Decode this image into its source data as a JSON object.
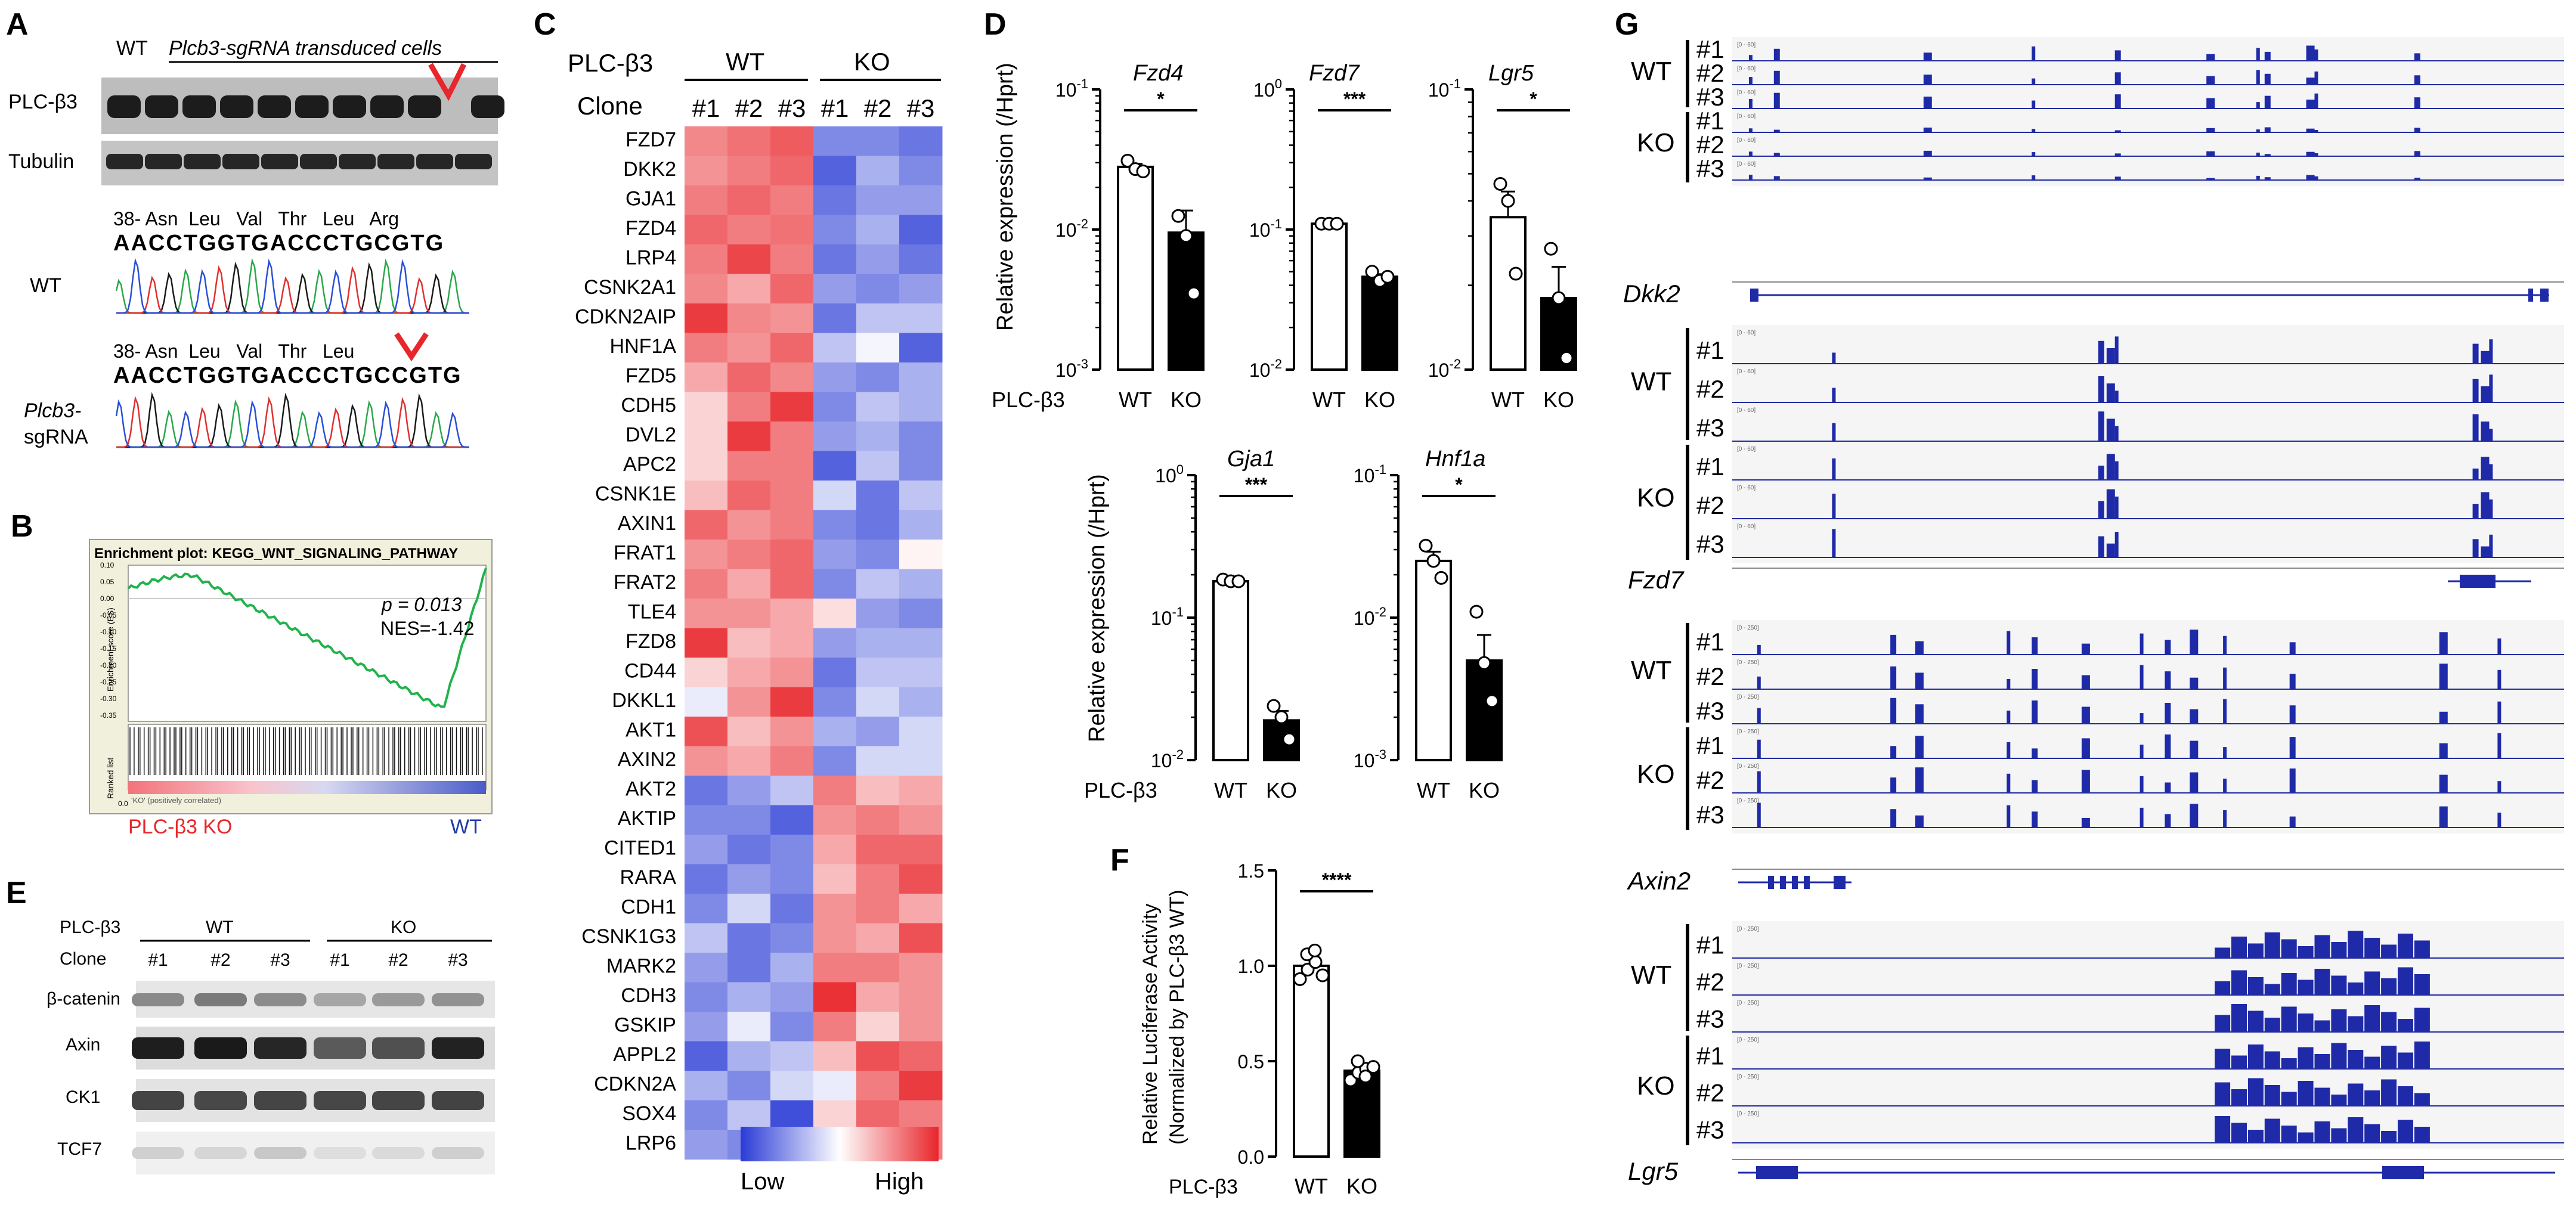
{
  "panels": {
    "A": {
      "letter": "A",
      "wt_label": "WT",
      "transduced_label": "Plcb3-sgRNA transduced cells",
      "protein_labels": [
        "PLC-β3",
        "Tubulin"
      ],
      "seq_wt_header": "38- Asn  Leu   Val   Thr   Leu   Arg",
      "seq_wt": "AACCTGGTGACCCTGCGTG",
      "seq_wt_label": "WT",
      "seq_ko_header": "38- Asn  Leu   Val   Thr   Leu",
      "seq_ko": "AACCTGGTGACCCTGCCGTG",
      "seq_ko_label_1": "Plcb3-",
      "seq_ko_label_2": "sgRNA"
    },
    "B": {
      "letter": "B",
      "plot_title": "Enrichment plot: KEGG_WNT_SIGNALING_PATHWAY",
      "p_text": "p = 0.013",
      "nes_text": "NES=-1.42",
      "ylabel": "Enrichment score (ES)",
      "yticks": [
        "0.10",
        "0.05",
        "0.00",
        "-0.05",
        "-0.10",
        "-0.15",
        "-0.20",
        "-0.25",
        "-0.30",
        "-0.35"
      ],
      "rank_label": "Ranked list",
      "rank_tick": "0.0",
      "rank_caption": "'KO' (positively correlated)",
      "left_label": "PLC-β3 KO",
      "right_label": "WT",
      "left_color": "#e8262b",
      "right_color": "#1f3aa8"
    },
    "C": {
      "letter": "C",
      "row1_label": "PLC-β3",
      "row2_label": "Clone",
      "groups": [
        "WT",
        "KO"
      ],
      "clones": [
        "#1",
        "#2",
        "#3",
        "#1",
        "#2",
        "#3"
      ],
      "genes": [
        "FZD7",
        "DKK2",
        "GJA1",
        "FZD4",
        "LRP4",
        "CSNK2A1",
        "CDKN2AIP",
        "HNF1A",
        "FZD5",
        "CDH5",
        "DVL2",
        "APC2",
        "CSNK1E",
        "AXIN1",
        "FRAT1",
        "FRAT2",
        "TLE4",
        "FZD8",
        "CD44",
        "DKKL1",
        "AKT1",
        "AXIN2",
        "AKT2",
        "AKTIP",
        "CITED1",
        "RARA",
        "CDH1",
        "CSNK1G3",
        "MARK2",
        "CDH3",
        "GSKIP",
        "APPL2",
        "CDKN2A",
        "SOX4",
        "LRP6"
      ],
      "matrix": [
        [
          0.55,
          0.65,
          0.75,
          -0.6,
          -0.6,
          -0.7
        ],
        [
          0.5,
          0.6,
          0.7,
          -0.8,
          -0.4,
          -0.6
        ],
        [
          0.6,
          0.7,
          0.6,
          -0.7,
          -0.5,
          -0.5
        ],
        [
          0.7,
          0.6,
          0.65,
          -0.6,
          -0.4,
          -0.8
        ],
        [
          0.6,
          0.85,
          0.6,
          -0.7,
          -0.5,
          -0.7
        ],
        [
          0.55,
          0.4,
          0.7,
          -0.5,
          -0.6,
          -0.5
        ],
        [
          0.9,
          0.55,
          0.5,
          -0.7,
          -0.3,
          -0.3
        ],
        [
          0.6,
          0.5,
          0.7,
          -0.3,
          -0.05,
          -0.8
        ],
        [
          0.4,
          0.7,
          0.55,
          -0.5,
          -0.6,
          -0.4
        ],
        [
          0.2,
          0.6,
          0.9,
          -0.6,
          -0.3,
          -0.4
        ],
        [
          0.2,
          0.9,
          0.6,
          -0.5,
          -0.4,
          -0.6
        ],
        [
          0.2,
          0.6,
          0.6,
          -0.8,
          -0.3,
          -0.6
        ],
        [
          0.3,
          0.7,
          0.6,
          -0.2,
          -0.7,
          -0.3
        ],
        [
          0.7,
          0.5,
          0.6,
          -0.6,
          -0.7,
          -0.4
        ],
        [
          0.5,
          0.6,
          0.7,
          -0.5,
          -0.6,
          0.05
        ],
        [
          0.6,
          0.4,
          0.7,
          -0.6,
          -0.3,
          -0.4
        ],
        [
          0.5,
          0.5,
          0.4,
          0.15,
          -0.5,
          -0.6
        ],
        [
          0.9,
          0.3,
          0.4,
          -0.5,
          -0.4,
          -0.4
        ],
        [
          0.2,
          0.4,
          0.5,
          -0.7,
          -0.3,
          -0.3
        ],
        [
          -0.1,
          0.5,
          0.9,
          -0.6,
          -0.2,
          -0.4
        ],
        [
          0.8,
          0.3,
          0.5,
          -0.4,
          -0.5,
          -0.2
        ],
        [
          0.5,
          0.4,
          0.6,
          -0.6,
          -0.2,
          -0.2
        ],
        [
          -0.7,
          -0.5,
          -0.3,
          0.6,
          0.3,
          0.4
        ],
        [
          -0.6,
          -0.6,
          -0.8,
          0.5,
          0.6,
          0.5
        ],
        [
          -0.5,
          -0.7,
          -0.6,
          0.4,
          0.7,
          0.7
        ],
        [
          -0.7,
          -0.5,
          -0.6,
          0.3,
          0.6,
          0.8
        ],
        [
          -0.6,
          -0.2,
          -0.7,
          0.5,
          0.6,
          0.4
        ],
        [
          -0.3,
          -0.7,
          -0.6,
          0.5,
          0.4,
          0.8
        ],
        [
          -0.5,
          -0.7,
          -0.4,
          0.6,
          0.6,
          0.5
        ],
        [
          -0.6,
          -0.4,
          -0.5,
          0.95,
          0.4,
          0.5
        ],
        [
          -0.5,
          -0.1,
          -0.6,
          0.6,
          0.2,
          0.5
        ],
        [
          -0.8,
          -0.4,
          -0.3,
          0.3,
          0.8,
          0.7
        ],
        [
          -0.4,
          -0.6,
          -0.2,
          -0.1,
          0.6,
          0.9
        ],
        [
          -0.6,
          -0.3,
          -0.9,
          0.2,
          0.7,
          0.6
        ],
        [
          -0.5,
          -0.6,
          -0.6,
          0.1,
          0.9,
          0.6
        ]
      ],
      "legend_low": "Low",
      "legend_high": "High",
      "low_color": "#2a3bd6",
      "high_color": "#e8262b"
    },
    "D": {
      "letter": "D",
      "ylabel": "Relative expression (/Hprt)",
      "row_label": "PLC-β3",
      "wt": "WT",
      "ko": "KO"
    },
    "E": {
      "letter": "E",
      "row1_label": "PLC-β3",
      "row2_label": "Clone",
      "groups": [
        "WT",
        "KO"
      ],
      "clones": [
        "#1",
        "#2",
        "#3",
        "#1",
        "#2",
        "#3"
      ],
      "protein_labels": [
        "β-catenin",
        "Axin",
        "CK1",
        "TCF7"
      ]
    },
    "F": {
      "letter": "F",
      "ylabel_1": "Relative Luciferase Activity",
      "ylabel_2": "(Normalized by PLC-β3 WT)",
      "row_label": "PLC-β3"
    },
    "G": {
      "letter": "G",
      "wt": "WT",
      "ko": "KO",
      "replicates": [
        "#1",
        "#2",
        "#3"
      ],
      "range_labels": [
        "[0 - 60]",
        "[0 - 250]"
      ],
      "loci": [
        "Dkk2",
        "Fzd7",
        "Axin2",
        "Lgr5"
      ]
    }
  },
  "chart_data": [
    {
      "type": "bar",
      "name": "Fzd4",
      "title": "Fzd4",
      "scale": "log",
      "ylim": [
        0.001,
        0.1
      ],
      "yticks": [
        "10-1",
        "10-2",
        "10-3"
      ],
      "categories": [
        "WT",
        "KO"
      ],
      "values": [
        0.028,
        0.0095
      ],
      "points": [
        [
          0.031,
          0.027,
          0.026
        ],
        [
          0.0125,
          0.009,
          0.0035
        ]
      ],
      "significance": "*"
    },
    {
      "type": "bar",
      "name": "Fzd7",
      "title": "Fzd7",
      "scale": "log",
      "ylim": [
        0.01,
        1
      ],
      "yticks": [
        "100",
        "10-1",
        "10-2"
      ],
      "categories": [
        "WT",
        "KO"
      ],
      "values": [
        0.11,
        0.046
      ],
      "points": [
        [
          0.11,
          0.11,
          0.11
        ],
        [
          0.05,
          0.043,
          0.046
        ]
      ],
      "significance": "***"
    },
    {
      "type": "bar",
      "name": "Lgr5",
      "title": "Lgr5",
      "scale": "log",
      "ylim": [
        0.01,
        0.1
      ],
      "yticks": [
        "10-1",
        "10-2"
      ],
      "categories": [
        "WT",
        "KO"
      ],
      "values": [
        0.035,
        0.018
      ],
      "points": [
        [
          0.046,
          0.04,
          0.022
        ],
        [
          0.027,
          0.018,
          0.011
        ]
      ],
      "significance": "*"
    },
    {
      "type": "bar",
      "name": "Gja1",
      "title": "Gja1",
      "scale": "log",
      "ylim": [
        0.01,
        1
      ],
      "yticks": [
        "100",
        "10-1",
        "10-2"
      ],
      "categories": [
        "WT",
        "KO"
      ],
      "values": [
        0.18,
        0.019
      ],
      "points": [
        [
          0.185,
          0.18,
          0.18
        ],
        [
          0.024,
          0.02,
          0.014
        ]
      ],
      "significance": "***"
    },
    {
      "type": "bar",
      "name": "Hnf1a",
      "title": "Hnf1a",
      "scale": "log",
      "ylim": [
        0.001,
        0.1
      ],
      "yticks": [
        "10-1",
        "10-2",
        "10-3"
      ],
      "categories": [
        "WT",
        "KO"
      ],
      "values": [
        0.025,
        0.005
      ],
      "points": [
        [
          0.032,
          0.025,
          0.019
        ],
        [
          0.011,
          0.0048,
          0.0026
        ]
      ],
      "significance": "*"
    },
    {
      "type": "bar",
      "name": "Luciferase",
      "title": "",
      "scale": "linear",
      "ylim": [
        0,
        1.5
      ],
      "yticks": [
        "0.0",
        "0.5",
        "1.0",
        "1.5"
      ],
      "categories": [
        "WT",
        "KO"
      ],
      "values": [
        1.0,
        0.45
      ],
      "points": [
        [
          0.93,
          0.98,
          1.02,
          1.06,
          1.08,
          0.95
        ],
        [
          0.4,
          0.44,
          0.46,
          0.5,
          0.42,
          0.47
        ]
      ],
      "significance": "****"
    }
  ]
}
